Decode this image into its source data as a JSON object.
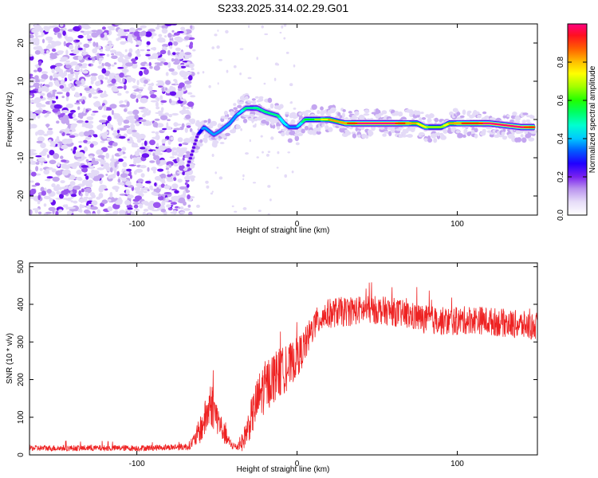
{
  "title": "S233.2025.314.02.29.G01",
  "colors": {
    "spectrogram_cmap": [
      "#ffffff",
      "#dcd0f5",
      "#b890ee",
      "#8a3ff0",
      "#5a00f0",
      "#0000ff",
      "#00a0ff",
      "#00ffff",
      "#00ff80",
      "#00ff00",
      "#a0ff00",
      "#ffff00",
      "#ffa000",
      "#ff2000",
      "#ff0080"
    ],
    "snr_line": "#ee2222",
    "axis": "#000000"
  },
  "chart_data": [
    {
      "type": "heatmap",
      "title": "S233.2025.314.02.29.G01",
      "xlabel": "Height of straight line (km)",
      "ylabel": "Frequency (Hz)",
      "xlim": [
        -167,
        150
      ],
      "ylim": [
        -25,
        25
      ],
      "xticks": [
        -100,
        0,
        100
      ],
      "yticks": [
        -20,
        -10,
        0,
        10,
        20
      ],
      "colorbar": {
        "label": "Normalized spectral amplitude",
        "range": [
          0.0,
          1.0
        ],
        "ticks": [
          0.0,
          0.2,
          0.4,
          0.6,
          0.8
        ]
      },
      "noise_region_x": [
        -167,
        -68
      ],
      "ridge": {
        "x": [
          -68,
          -62,
          -58,
          -52,
          -48,
          -42,
          -38,
          -32,
          -25,
          -20,
          -12,
          -8,
          -5,
          0,
          5,
          10,
          20,
          30,
          40,
          60,
          75,
          80,
          85,
          90,
          95,
          100,
          110,
          120,
          140,
          148
        ],
        "y": [
          -12,
          -4,
          -2,
          -4,
          -3,
          -1,
          1,
          3,
          3,
          2,
          1,
          -1,
          -2,
          -2,
          0,
          0,
          0,
          -1,
          -1,
          -1,
          -1,
          -2,
          -2,
          -2,
          -1,
          -1,
          -1,
          -1,
          -2,
          -2
        ],
        "amplitude": [
          0.3,
          0.3,
          0.45,
          0.4,
          0.4,
          0.45,
          0.45,
          0.55,
          0.6,
          0.55,
          0.55,
          0.5,
          0.45,
          0.45,
          0.6,
          0.65,
          0.8,
          0.85,
          0.95,
          0.95,
          0.8,
          0.75,
          0.7,
          0.7,
          0.8,
          0.85,
          0.9,
          0.95,
          0.95,
          0.9
        ]
      }
    },
    {
      "type": "line",
      "xlabel": "Height of straight line (km)",
      "ylabel": "SNR (10 * v/v)",
      "xlim": [
        -167,
        150
      ],
      "ylim": [
        0,
        510
      ],
      "xticks": [
        -100,
        0,
        100
      ],
      "yticks": [
        0,
        100,
        200,
        300,
        400,
        500
      ],
      "series": [
        {
          "name": "SNR",
          "envelope_x": [
            -167,
            -120,
            -100,
            -80,
            -68,
            -64,
            -60,
            -56,
            -54,
            -50,
            -46,
            -42,
            -38,
            -34,
            -30,
            -26,
            -22,
            -18,
            -14,
            -10,
            -6,
            -2,
            2,
            6,
            10,
            14,
            16,
            20,
            25,
            30,
            40,
            50,
            60,
            70,
            80,
            90,
            100,
            110,
            120,
            130,
            140,
            150
          ],
          "envelope_mean": [
            18,
            18,
            18,
            20,
            22,
            40,
            70,
            110,
            140,
            100,
            60,
            30,
            20,
            35,
            80,
            130,
            170,
            190,
            210,
            220,
            230,
            250,
            270,
            300,
            340,
            360,
            370,
            375,
            380,
            380,
            385,
            385,
            380,
            370,
            360,
            355,
            355,
            360,
            355,
            350,
            345,
            340
          ],
          "envelope_spread": [
            8,
            8,
            8,
            8,
            10,
            20,
            40,
            55,
            65,
            45,
            30,
            15,
            10,
            25,
            45,
            60,
            70,
            70,
            70,
            65,
            60,
            55,
            50,
            45,
            40,
            40,
            40,
            40,
            40,
            40,
            38,
            38,
            38,
            38,
            38,
            38,
            38,
            38,
            38,
            38,
            38,
            38
          ]
        }
      ]
    }
  ]
}
